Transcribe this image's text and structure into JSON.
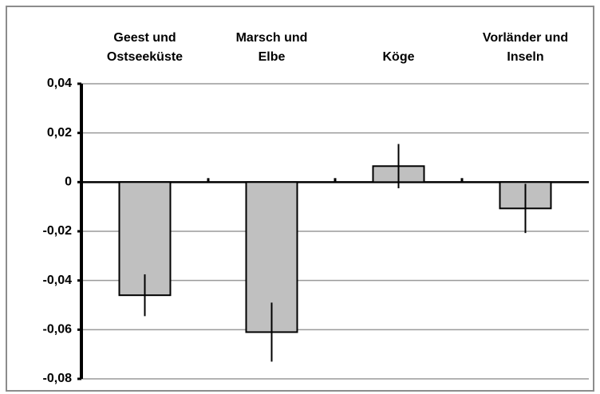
{
  "chart_data": {
    "type": "bar",
    "categories": [
      [
        "Geest und",
        "Ostseeküste"
      ],
      [
        "Marsch und",
        "Elbe"
      ],
      [
        "Köge"
      ],
      [
        "Vorländer und",
        "Inseln"
      ]
    ],
    "values": [
      -0.046,
      -0.061,
      0.0065,
      -0.0107
    ],
    "errors": [
      0.0085,
      0.012,
      0.009,
      0.01
    ],
    "color": "#c0c0c0",
    "ylim": [
      -0.08,
      0.04
    ],
    "yticks": [
      {
        "value": -0.08,
        "label": "-0,08"
      },
      {
        "value": -0.06,
        "label": "-0,06"
      },
      {
        "value": -0.04,
        "label": "-0,04"
      },
      {
        "value": -0.02,
        "label": "-0,02"
      },
      0,
      {
        "value": 0.02,
        "label": "0,02"
      },
      {
        "value": 0.04,
        "label": "0,04"
      }
    ],
    "grid": true
  }
}
